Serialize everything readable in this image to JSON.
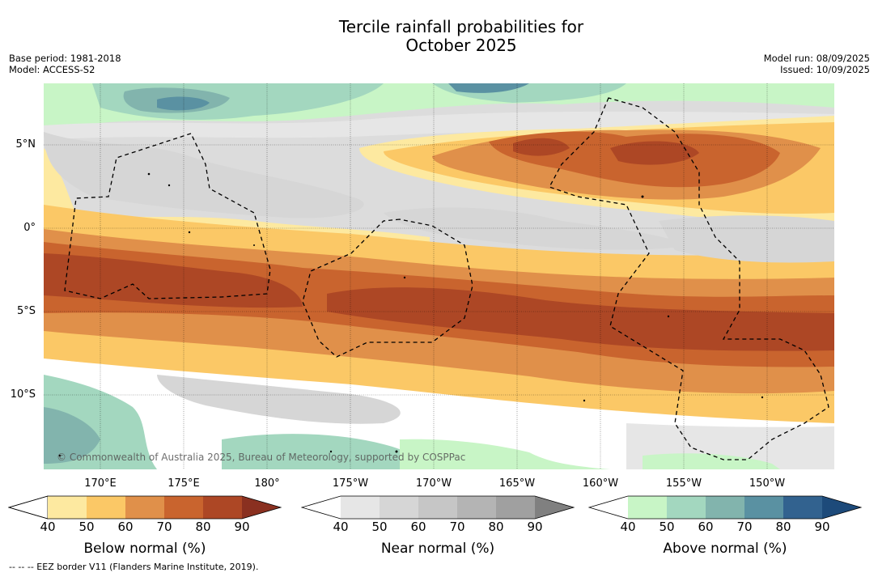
{
  "title_line1": "Tercile rainfall probabilities for",
  "title_line2": "October 2025",
  "meta_left": [
    "Base period: 1981-2018",
    "Model: ACCESS-S2"
  ],
  "meta_right": [
    "Model run: 08/09/2025",
    "Issued: 10/09/2025"
  ],
  "lat_labels": [
    "5°N",
    "0°",
    "5°S",
    "10°S"
  ],
  "lon_labels": [
    "170°E",
    "175°E",
    "180°",
    "175°W",
    "170°W",
    "165°W",
    "160°W",
    "155°W",
    "150°W"
  ],
  "copyright": "© Commonwealth of Australia 2025, Bureau of Meteorology, supported by COSPPac",
  "colorbars": [
    {
      "label": "Below normal (%)",
      "ticks": [
        "40",
        "50",
        "60",
        "70",
        "80",
        "90"
      ],
      "colors": [
        "#ffffff",
        "#fde9a0",
        "#fbc866",
        "#e0904a",
        "#c9642e",
        "#ad4725",
        "#8a3020"
      ]
    },
    {
      "label": "Near normal (%)",
      "ticks": [
        "40",
        "50",
        "60",
        "70",
        "80",
        "90"
      ],
      "colors": [
        "#ffffff",
        "#e6e6e6",
        "#d6d6d6",
        "#c6c6c6",
        "#b4b4b4",
        "#a0a0a0",
        "#808080"
      ]
    },
    {
      "label": "Above normal (%)",
      "ticks": [
        "40",
        "50",
        "60",
        "70",
        "80",
        "90"
      ],
      "colors": [
        "#ffffff",
        "#c8f5c6",
        "#a3d7bf",
        "#82b4ad",
        "#5a91a2",
        "#32628f",
        "#1d4a7a"
      ]
    }
  ],
  "footer": "--  --  -- EEZ border V11 (Flanders Marine Institute, 2019)."
}
